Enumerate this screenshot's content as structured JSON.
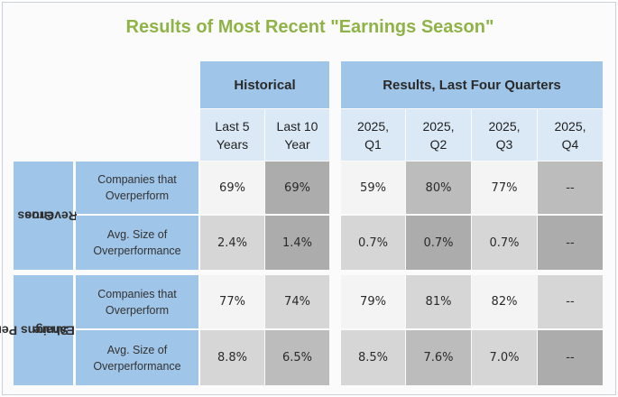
{
  "title": "Results of Most Recent \"Earnings Season\"",
  "groups": {
    "historical": "Historical",
    "quarters": "Results, Last Four Quarters"
  },
  "columns": {
    "h1": [
      "Last 5",
      "Years"
    ],
    "h2": [
      "Last 10",
      "Year"
    ],
    "q1": [
      "2025,",
      "Q1"
    ],
    "q2": [
      "2025,",
      "Q2"
    ],
    "q3": [
      "2025,",
      "Q3"
    ],
    "q4": [
      "2025,",
      "Q4"
    ]
  },
  "sections": {
    "revenue": [
      "Gross",
      "Revenue"
    ],
    "eps": [
      "Earnigns Per",
      "Share"
    ]
  },
  "metrics": {
    "overperform": [
      "Companies that",
      "Overperform"
    ],
    "size": [
      "Avg. Size of",
      "Overperformance"
    ]
  },
  "values": {
    "rev_over": [
      "69%",
      "69%",
      "59%",
      "80%",
      "77%",
      "--"
    ],
    "rev_size": [
      "2.4%",
      "1.4%",
      "0.7%",
      "0.7%",
      "0.7%",
      "--"
    ],
    "eps_over": [
      "77%",
      "74%",
      "79%",
      "81%",
      "82%",
      "--"
    ],
    "eps_size": [
      "8.8%",
      "6.5%",
      "8.5%",
      "7.6%",
      "7.0%",
      "--"
    ]
  }
}
